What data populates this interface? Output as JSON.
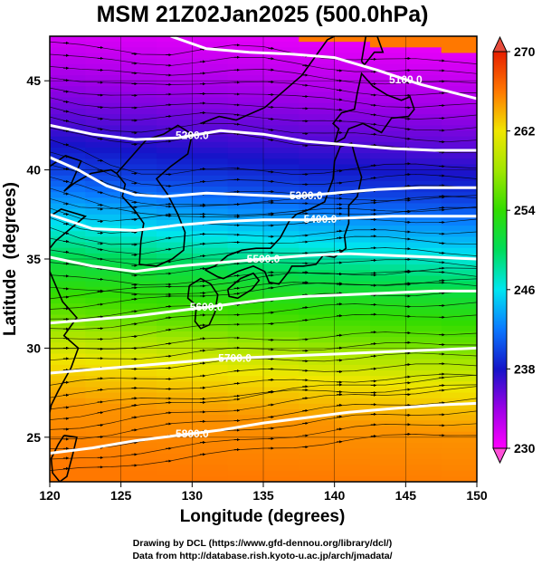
{
  "title": "MSM 21Z02Jan2025 (500.0hPa)",
  "credits": {
    "line1": "Drawing by DCL (https://www.gfd-dennou.org/library/dcl/)",
    "line2": "Data from http://database.rish.kyoto-u.ac.jp/arch/jmadata/"
  },
  "chart_data": {
    "type": "heatmap",
    "xlabel": "Longitude (degrees)",
    "ylabel": "Latitude  (degrees)",
    "xlim": [
      120,
      150
    ],
    "ylim": [
      22.5,
      47.5
    ],
    "xticks": [
      120,
      125,
      130,
      135,
      140,
      145,
      150
    ],
    "yticks": [
      25,
      30,
      35,
      40,
      45
    ],
    "grid": true,
    "colorbar": {
      "min": 230,
      "max": 270,
      "ticks": [
        230,
        238,
        246,
        254,
        262,
        270
      ],
      "stops": [
        {
          "v": 230,
          "c": "#ff00ff"
        },
        {
          "v": 234,
          "c": "#9b00e6"
        },
        {
          "v": 238,
          "c": "#1414c8"
        },
        {
          "v": 242,
          "c": "#0a78ff"
        },
        {
          "v": 246,
          "c": "#00e6f0"
        },
        {
          "v": 250,
          "c": "#00dc5a"
        },
        {
          "v": 254,
          "c": "#32dc00"
        },
        {
          "v": 258,
          "c": "#a0e600"
        },
        {
          "v": 262,
          "c": "#f0e600"
        },
        {
          "v": 266,
          "c": "#ff7800"
        },
        {
          "v": 270,
          "c": "#e61e00"
        }
      ]
    },
    "temperature_field": {
      "description_free": true,
      "profile": [
        {
          "lat": 47.5,
          "t": 231
        },
        {
          "lat": 45,
          "t": 233
        },
        {
          "lat": 42,
          "t": 236
        },
        {
          "lat": 39,
          "t": 240
        },
        {
          "lat": 36.5,
          "t": 245
        },
        {
          "lat": 34,
          "t": 251
        },
        {
          "lat": 31,
          "t": 256
        },
        {
          "lat": 28.5,
          "t": 262
        },
        {
          "lat": 26,
          "t": 265
        },
        {
          "lat": 22.5,
          "t": 266
        }
      ]
    },
    "height_contours": [
      {
        "label": "5100.0",
        "points": [
          [
            128.5,
            47.5
          ],
          [
            131,
            46.8
          ],
          [
            134,
            46.6
          ],
          [
            137,
            46.5
          ],
          [
            140,
            46.3
          ],
          [
            143,
            45.6
          ],
          [
            146,
            44.8
          ],
          [
            150,
            44.0
          ]
        ]
      },
      {
        "label": "5200.0",
        "points": [
          [
            120,
            42.5
          ],
          [
            123,
            42.0
          ],
          [
            126,
            41.7
          ],
          [
            129,
            41.8
          ],
          [
            132,
            42.2
          ],
          [
            135,
            42.0
          ],
          [
            138,
            41.6
          ],
          [
            141,
            41.4
          ],
          [
            144,
            41.2
          ],
          [
            147,
            41.1
          ],
          [
            150,
            41.1
          ]
        ]
      },
      {
        "label": "5300.0",
        "points": [
          [
            120,
            40.7
          ],
          [
            122,
            40.0
          ],
          [
            124,
            39.1
          ],
          [
            126,
            38.6
          ],
          [
            128,
            38.5
          ],
          [
            131,
            38.7
          ],
          [
            134,
            38.6
          ],
          [
            137,
            38.5
          ],
          [
            140,
            38.7
          ],
          [
            143,
            38.9
          ],
          [
            146,
            39.0
          ],
          [
            150,
            39.0
          ]
        ]
      },
      {
        "label": "5400.0",
        "points": [
          [
            120,
            37.5
          ],
          [
            123,
            36.7
          ],
          [
            126,
            36.6
          ],
          [
            129,
            36.9
          ],
          [
            132,
            37.1
          ],
          [
            135,
            37.2
          ],
          [
            138,
            37.2
          ],
          [
            141,
            37.3
          ],
          [
            144,
            37.4
          ],
          [
            147,
            37.4
          ],
          [
            150,
            37.4
          ]
        ]
      },
      {
        "label": "5500.0",
        "points": [
          [
            120,
            35.1
          ],
          [
            123,
            34.6
          ],
          [
            126,
            34.3
          ],
          [
            129,
            34.6
          ],
          [
            132,
            34.8
          ],
          [
            135,
            35.0
          ],
          [
            138,
            35.2
          ],
          [
            141,
            35.3
          ],
          [
            144,
            35.2
          ],
          [
            147,
            35.1
          ],
          [
            150,
            35.0
          ]
        ]
      },
      {
        "label": "5600.0",
        "points": [
          [
            120,
            31.4
          ],
          [
            123,
            31.6
          ],
          [
            126,
            31.8
          ],
          [
            129,
            32.1
          ],
          [
            132,
            32.4
          ],
          [
            135,
            32.7
          ],
          [
            138,
            32.9
          ],
          [
            141,
            33.0
          ],
          [
            144,
            33.1
          ],
          [
            147,
            33.2
          ],
          [
            150,
            33.2
          ]
        ]
      },
      {
        "label": "5700.0",
        "points": [
          [
            120,
            28.6
          ],
          [
            123,
            28.8
          ],
          [
            126,
            29.0
          ],
          [
            129,
            29.2
          ],
          [
            132,
            29.4
          ],
          [
            135,
            29.5
          ],
          [
            138,
            29.6
          ],
          [
            141,
            29.7
          ],
          [
            144,
            29.8
          ],
          [
            147,
            29.9
          ],
          [
            150,
            30.0
          ]
        ]
      },
      {
        "label": "5800.0",
        "points": [
          [
            120,
            24.1
          ],
          [
            123,
            24.4
          ],
          [
            126,
            24.8
          ],
          [
            129,
            25.1
          ],
          [
            132,
            25.4
          ],
          [
            135,
            25.8
          ],
          [
            138,
            26.1
          ],
          [
            141,
            26.4
          ],
          [
            144,
            26.6
          ],
          [
            147,
            26.8
          ],
          [
            150,
            26.9
          ]
        ]
      }
    ],
    "coastlines": [
      {
        "name": "japan-main",
        "points": [
          [
            130.9,
            34.4
          ],
          [
            131.6,
            34.6
          ],
          [
            132.5,
            35.2
          ],
          [
            133.5,
            35.5
          ],
          [
            134.5,
            35.6
          ],
          [
            135.5,
            35.6
          ],
          [
            136.2,
            36.2
          ],
          [
            136.8,
            37.1
          ],
          [
            137.3,
            37.5
          ],
          [
            138.3,
            37.8
          ],
          [
            139.3,
            38.2
          ],
          [
            139.9,
            39.5
          ],
          [
            140.0,
            40.5
          ],
          [
            140.4,
            41.3
          ],
          [
            141.2,
            41.5
          ],
          [
            141.5,
            40.6
          ],
          [
            141.9,
            39.6
          ],
          [
            141.6,
            38.5
          ],
          [
            141.0,
            38.0
          ],
          [
            141.0,
            37.0
          ],
          [
            140.7,
            36.3
          ],
          [
            140.8,
            35.6
          ],
          [
            140.0,
            35.1
          ],
          [
            139.2,
            35.2
          ],
          [
            138.7,
            34.7
          ],
          [
            137.8,
            34.6
          ],
          [
            137.0,
            34.6
          ],
          [
            136.8,
            34.3
          ],
          [
            136.1,
            33.6
          ],
          [
            135.4,
            33.7
          ],
          [
            135.1,
            34.3
          ],
          [
            134.3,
            34.6
          ],
          [
            133.2,
            34.3
          ],
          [
            132.2,
            33.9
          ],
          [
            131.8,
            34.0
          ],
          [
            130.9,
            34.4
          ]
        ]
      },
      {
        "name": "kyushu",
        "points": [
          [
            129.8,
            33.5
          ],
          [
            130.6,
            33.9
          ],
          [
            131.3,
            33.6
          ],
          [
            131.8,
            33.0
          ],
          [
            131.6,
            32.0
          ],
          [
            131.2,
            31.3
          ],
          [
            130.6,
            31.1
          ],
          [
            130.2,
            31.5
          ],
          [
            130.3,
            32.4
          ],
          [
            129.7,
            32.8
          ],
          [
            129.8,
            33.5
          ]
        ]
      },
      {
        "name": "shikoku",
        "points": [
          [
            132.5,
            33.3
          ],
          [
            133.4,
            33.9
          ],
          [
            134.3,
            34.2
          ],
          [
            134.7,
            33.8
          ],
          [
            134.2,
            33.3
          ],
          [
            133.2,
            32.8
          ],
          [
            132.6,
            32.9
          ],
          [
            132.5,
            33.3
          ]
        ]
      },
      {
        "name": "hokkaido",
        "points": [
          [
            140.0,
            41.5
          ],
          [
            140.3,
            42.3
          ],
          [
            139.9,
            42.6
          ],
          [
            140.5,
            43.2
          ],
          [
            141.4,
            43.4
          ],
          [
            141.6,
            44.3
          ],
          [
            141.9,
            45.4
          ],
          [
            142.7,
            44.7
          ],
          [
            143.7,
            44.2
          ],
          [
            144.7,
            43.9
          ],
          [
            145.3,
            44.1
          ],
          [
            145.6,
            43.4
          ],
          [
            145.2,
            43.0
          ],
          [
            144.0,
            42.9
          ],
          [
            143.3,
            42.1
          ],
          [
            142.0,
            42.6
          ],
          [
            141.0,
            42.3
          ],
          [
            140.7,
            41.8
          ],
          [
            140.0,
            41.5
          ]
        ]
      },
      {
        "name": "sakhalin",
        "points": [
          [
            141.9,
            46.1
          ],
          [
            142.2,
            47.5
          ],
          [
            143.0,
            47.5
          ],
          [
            143.4,
            46.6
          ],
          [
            142.8,
            46.6
          ],
          [
            142.1,
            45.9
          ],
          [
            141.9,
            46.1
          ]
        ]
      },
      {
        "name": "korea",
        "points": [
          [
            124.7,
            39.8
          ],
          [
            125.3,
            39.2
          ],
          [
            125.1,
            38.5
          ],
          [
            125.9,
            37.8
          ],
          [
            126.6,
            37.0
          ],
          [
            126.4,
            36.0
          ],
          [
            126.3,
            34.7
          ],
          [
            127.5,
            34.6
          ],
          [
            128.6,
            35.0
          ],
          [
            129.4,
            35.5
          ],
          [
            129.5,
            36.5
          ],
          [
            129.0,
            37.5
          ],
          [
            128.3,
            38.6
          ],
          [
            127.5,
            39.5
          ],
          [
            128.5,
            40.2
          ],
          [
            129.7,
            40.9
          ],
          [
            130.0,
            42.0
          ],
          [
            129.0,
            42.5
          ],
          [
            128.0,
            42.0
          ],
          [
            126.8,
            41.7
          ],
          [
            125.8,
            40.8
          ],
          [
            124.7,
            39.8
          ]
        ]
      },
      {
        "name": "china-coast",
        "points": [
          [
            120.0,
            40.2
          ],
          [
            121.1,
            40.8
          ],
          [
            122.2,
            40.5
          ],
          [
            121.5,
            39.2
          ],
          [
            121.0,
            38.8
          ],
          [
            121.8,
            39.3
          ],
          [
            122.9,
            39.8
          ],
          [
            124.3,
            40.0
          ],
          [
            124.7,
            39.8
          ]
        ]
      },
      {
        "name": "shandong",
        "points": [
          [
            120.0,
            37.4
          ],
          [
            120.8,
            37.8
          ],
          [
            122.5,
            37.4
          ],
          [
            121.6,
            36.8
          ],
          [
            120.4,
            36.0
          ],
          [
            120.0,
            35.6
          ]
        ]
      },
      {
        "name": "east-china",
        "points": [
          [
            120.0,
            34.3
          ],
          [
            120.9,
            32.6
          ],
          [
            121.9,
            31.7
          ],
          [
            121.0,
            30.7
          ],
          [
            122.0,
            30.0
          ],
          [
            121.5,
            28.9
          ],
          [
            120.6,
            27.6
          ],
          [
            120.1,
            26.8
          ],
          [
            120.0,
            26.4
          ]
        ]
      },
      {
        "name": "taiwan",
        "points": [
          [
            121.0,
            25.1
          ],
          [
            121.9,
            25.0
          ],
          [
            121.6,
            24.0
          ],
          [
            121.2,
            22.8
          ],
          [
            120.7,
            22.5
          ],
          [
            120.2,
            23.0
          ],
          [
            120.1,
            23.8
          ],
          [
            120.6,
            24.6
          ],
          [
            121.0,
            25.1
          ]
        ]
      },
      {
        "name": "russia-coast",
        "points": [
          [
            130.6,
            42.6
          ],
          [
            131.9,
            43.0
          ],
          [
            133.1,
            42.8
          ],
          [
            135.1,
            43.5
          ],
          [
            137.7,
            45.3
          ],
          [
            139.5,
            47.3
          ],
          [
            140.0,
            47.5
          ]
        ]
      }
    ]
  }
}
